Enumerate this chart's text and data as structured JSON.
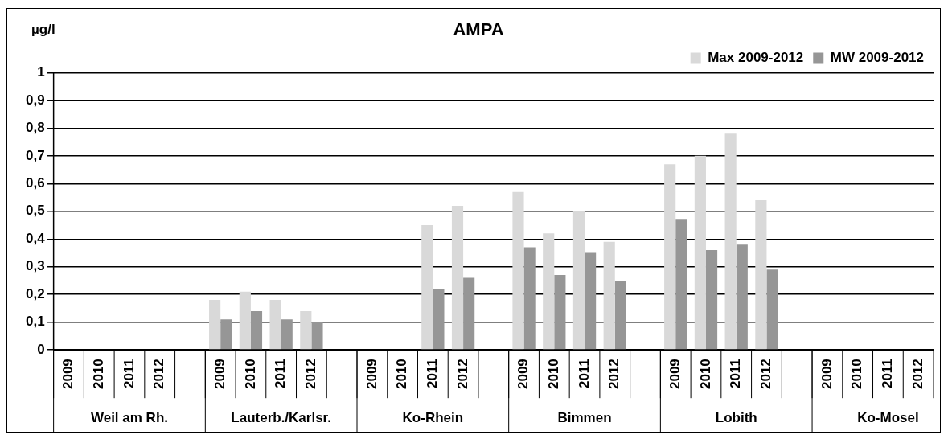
{
  "chart_data": {
    "type": "bar",
    "title": "AMPA",
    "ylabel": "µg/l",
    "categories": [
      "2009",
      "2010",
      "2011",
      "2012",
      null,
      "2009",
      "2010",
      "2011",
      "2012",
      null,
      "2009",
      "2010",
      "2011",
      "2012",
      null,
      "2009",
      "2010",
      "2011",
      "2012",
      null,
      "2009",
      "2010",
      "2011",
      "2012",
      null,
      "2009",
      "2010",
      "2011",
      "2012"
    ],
    "series": [
      {
        "name": "Max 2009-2012",
        "color": "#d9d9d9",
        "values": [
          null,
          null,
          null,
          null,
          null,
          0.18,
          0.21,
          0.18,
          0.14,
          null,
          null,
          null,
          0.45,
          0.52,
          null,
          0.57,
          0.42,
          0.5,
          0.39,
          null,
          0.67,
          0.7,
          0.78,
          0.54,
          null,
          null,
          null,
          null,
          null
        ]
      },
      {
        "name": "MW 2009-2012",
        "color": "#969696",
        "values": [
          null,
          null,
          null,
          null,
          null,
          0.11,
          0.14,
          0.11,
          0.1,
          null,
          null,
          null,
          0.22,
          0.26,
          null,
          0.37,
          0.27,
          0.35,
          0.25,
          null,
          0.47,
          0.36,
          0.38,
          0.29,
          null,
          null,
          null,
          null,
          null
        ]
      }
    ],
    "annotations": [
      "Weil am Rh.",
      "Lauterb./Karlsr.",
      "Ko-Rhein",
      "Bimmen",
      "Lobith",
      "Ko-Mosel"
    ],
    "ylim": [
      0,
      1
    ],
    "yticks": [
      0,
      {
        "value": 0.1,
        "label": "0,1"
      },
      {
        "value": 0.2,
        "label": "0,2"
      },
      {
        "value": 0.3,
        "label": "0,3"
      },
      {
        "value": 0.4,
        "label": "0,4"
      },
      {
        "value": 0.5,
        "label": "0,5"
      },
      {
        "value": 0.6,
        "label": "0,6"
      },
      {
        "value": 0.7,
        "label": "0,7"
      },
      {
        "value": 0.8,
        "label": "0,8"
      },
      {
        "value": 0.9,
        "label": "0,9"
      },
      1
    ],
    "grid": "y",
    "legend": "top right"
  }
}
